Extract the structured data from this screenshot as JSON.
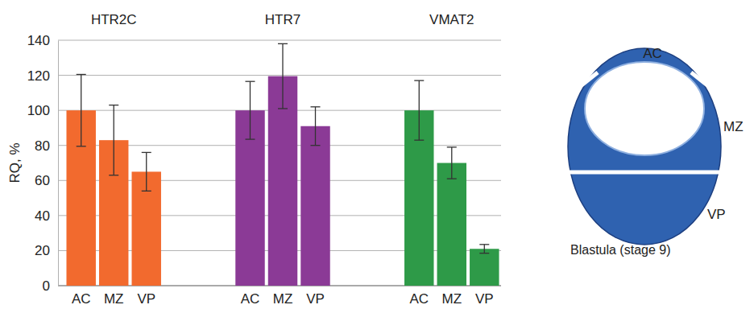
{
  "chart_data": {
    "type": "bar",
    "y_label": "RQ, %",
    "categories": [
      "AC",
      "MZ",
      "VP"
    ],
    "series": [
      {
        "name": "HTR2C",
        "color": "#f26a2e",
        "values": [
          100,
          83,
          65
        ],
        "errors": [
          20.5,
          20,
          11
        ]
      },
      {
        "name": "HTR7",
        "color": "#8b3a96",
        "values": [
          100,
          119.5,
          91
        ],
        "errors": [
          16.5,
          18.5,
          11
        ]
      },
      {
        "name": "VMAT2",
        "color": "#2e9a48",
        "values": [
          100,
          70,
          21
        ],
        "errors": [
          17,
          9,
          2.5
        ]
      }
    ],
    "ylim": [
      0,
      140
    ],
    "yticks": [
      0,
      20,
      40,
      60,
      80,
      100,
      120,
      140
    ],
    "grid": true,
    "annotations": [
      "AC",
      "MZ",
      "VP",
      "Blastula (stage 9)"
    ]
  }
}
